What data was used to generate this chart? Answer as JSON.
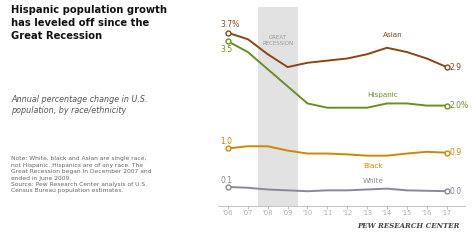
{
  "years": [
    2006,
    2007,
    2008,
    2009,
    2010,
    2011,
    2012,
    2013,
    2014,
    2015,
    2016,
    2017
  ],
  "asian": [
    3.7,
    3.55,
    3.2,
    2.9,
    3.0,
    3.05,
    3.1,
    3.2,
    3.35,
    3.25,
    3.1,
    2.9
  ],
  "hispanic": [
    3.5,
    3.25,
    2.85,
    2.45,
    2.05,
    1.95,
    1.95,
    1.95,
    2.05,
    2.05,
    2.0,
    2.0
  ],
  "black": [
    1.0,
    1.05,
    1.05,
    0.95,
    0.88,
    0.88,
    0.86,
    0.83,
    0.83,
    0.88,
    0.92,
    0.9
  ],
  "white": [
    0.1,
    0.08,
    0.04,
    0.02,
    0.0,
    0.02,
    0.02,
    0.04,
    0.06,
    0.02,
    0.01,
    0.0
  ],
  "asian_color": "#8B4513",
  "hispanic_color": "#6B8E23",
  "black_color": "#CC8800",
  "white_color": "#888899",
  "recession_start": 2007.5,
  "recession_end": 2009.5,
  "recession_color": "#e2e2e2",
  "title": "Hispanic population growth\nhas leveled off since the\nGreat Recession",
  "subtitle": "Annual percentage change in U.S.\npopulation, by race/ethnicity",
  "note": "Note: White, black and Asian are single race,\nnot Hispanic. Hispanics are of any race. The\nGreat Recession began in December 2007 and\nended in June 2009.\nSource: Pew Research Center analysis of U.S.\nCensus Bureau population estimates.",
  "watermark": "PEW RESEARCH CENTER",
  "bg_color": "#ffffff",
  "plot_bg": "#ffffff",
  "ylim": [
    -0.35,
    4.3
  ],
  "xlim": [
    2005.5,
    2017.9
  ]
}
